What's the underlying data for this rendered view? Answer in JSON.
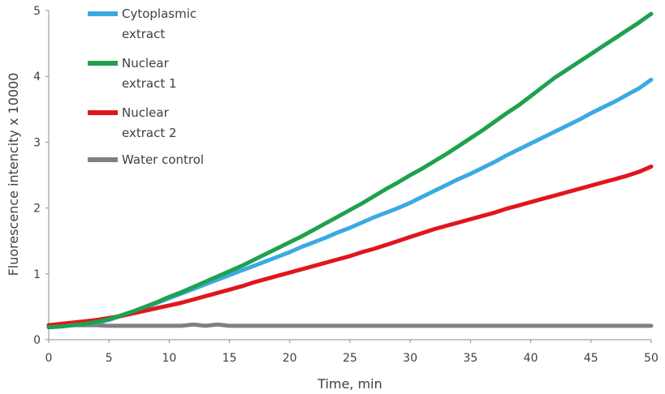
{
  "chart_data": {
    "type": "line",
    "xlabel": "Time, min",
    "ylabel": "Fluorescence intencity  x 10000",
    "xlim": [
      0,
      50
    ],
    "ylim": [
      0,
      5
    ],
    "xticks": [
      "0",
      "5",
      "10",
      "15",
      "20",
      "25",
      "30",
      "35",
      "40",
      "45",
      "50"
    ],
    "yticks": [
      "0",
      "1",
      "2",
      "3",
      "4",
      "5"
    ],
    "grid": false,
    "legend_position": "top-left",
    "x": [
      0,
      1,
      2,
      3,
      4,
      5,
      6,
      7,
      8,
      9,
      10,
      11,
      12,
      13,
      14,
      15,
      16,
      17,
      18,
      19,
      20,
      21,
      22,
      23,
      24,
      25,
      26,
      27,
      28,
      29,
      30,
      31,
      32,
      33,
      34,
      35,
      36,
      37,
      38,
      39,
      40,
      41,
      42,
      43,
      44,
      45,
      46,
      47,
      48,
      49,
      50
    ],
    "series": [
      {
        "name_lines": [
          "Cytoplasmic",
          "extract"
        ],
        "color": "#3caae2",
        "values": [
          0.19,
          0.2,
          0.22,
          0.24,
          0.26,
          0.3,
          0.36,
          0.42,
          0.49,
          0.56,
          0.63,
          0.7,
          0.77,
          0.84,
          0.91,
          0.98,
          1.05,
          1.12,
          1.19,
          1.26,
          1.33,
          1.41,
          1.48,
          1.55,
          1.63,
          1.7,
          1.78,
          1.86,
          1.93,
          2.0,
          2.08,
          2.17,
          2.26,
          2.35,
          2.44,
          2.52,
          2.61,
          2.7,
          2.8,
          2.89,
          2.98,
          3.07,
          3.16,
          3.25,
          3.34,
          3.44,
          3.53,
          3.62,
          3.72,
          3.82,
          3.95
        ]
      },
      {
        "name_lines": [
          "Nuclear",
          "extract 1"
        ],
        "color": "#1fa14e",
        "values": [
          0.19,
          0.2,
          0.22,
          0.24,
          0.27,
          0.31,
          0.37,
          0.43,
          0.5,
          0.57,
          0.65,
          0.72,
          0.8,
          0.88,
          0.96,
          1.04,
          1.12,
          1.21,
          1.3,
          1.39,
          1.48,
          1.57,
          1.67,
          1.77,
          1.87,
          1.97,
          2.07,
          2.18,
          2.29,
          2.39,
          2.5,
          2.6,
          2.71,
          2.82,
          2.94,
          3.06,
          3.18,
          3.31,
          3.44,
          3.56,
          3.7,
          3.84,
          3.98,
          4.1,
          4.22,
          4.34,
          4.46,
          4.58,
          4.7,
          4.82,
          4.95
        ]
      },
      {
        "name_lines": [
          "Nuclear",
          "extract 2"
        ],
        "color": "#e0161d",
        "values": [
          0.22,
          0.24,
          0.26,
          0.28,
          0.3,
          0.33,
          0.36,
          0.4,
          0.44,
          0.48,
          0.52,
          0.56,
          0.61,
          0.66,
          0.71,
          0.76,
          0.81,
          0.87,
          0.92,
          0.97,
          1.02,
          1.07,
          1.12,
          1.17,
          1.22,
          1.27,
          1.33,
          1.38,
          1.44,
          1.5,
          1.56,
          1.62,
          1.68,
          1.73,
          1.78,
          1.83,
          1.88,
          1.93,
          1.99,
          2.04,
          2.09,
          2.14,
          2.19,
          2.24,
          2.29,
          2.34,
          2.39,
          2.44,
          2.49,
          2.55,
          2.63
        ]
      },
      {
        "name_lines": [
          "Water control"
        ],
        "color": "#808080",
        "values": [
          0.22,
          0.22,
          0.22,
          0.22,
          0.22,
          0.21,
          0.21,
          0.21,
          0.21,
          0.21,
          0.21,
          0.21,
          0.23,
          0.21,
          0.23,
          0.21,
          0.21,
          0.21,
          0.21,
          0.21,
          0.21,
          0.21,
          0.21,
          0.21,
          0.21,
          0.21,
          0.21,
          0.21,
          0.21,
          0.21,
          0.21,
          0.21,
          0.21,
          0.21,
          0.21,
          0.21,
          0.21,
          0.21,
          0.21,
          0.21,
          0.21,
          0.21,
          0.21,
          0.21,
          0.21,
          0.21,
          0.21,
          0.21,
          0.21,
          0.21,
          0.21
        ]
      }
    ]
  }
}
